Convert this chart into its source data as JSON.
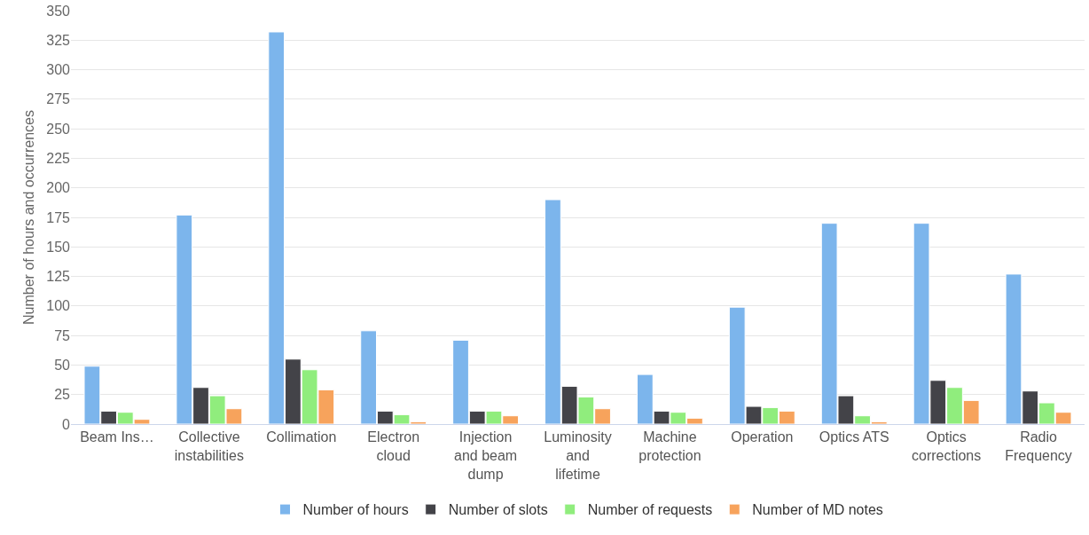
{
  "chart_data": {
    "type": "bar",
    "ylabel": "Number of hours and occurrences",
    "categories": [
      "Beam Ins…",
      "Collective instabilities",
      "Collimation",
      "Electron cloud",
      "Injection and beam dump",
      "Luminosity and lifetime",
      "Machine protection",
      "Operation",
      "Optics ATS",
      "Optics corrections",
      "Radio Frequency"
    ],
    "series": [
      {
        "name": "Number of hours",
        "color": "#7cb5ec",
        "values": [
          49,
          177,
          332,
          79,
          71,
          190,
          42,
          99,
          170,
          170,
          127
        ]
      },
      {
        "name": "Number of slots",
        "color": "#434348",
        "values": [
          11,
          31,
          55,
          11,
          11,
          32,
          11,
          15,
          24,
          37,
          28
        ]
      },
      {
        "name": "Number of requests",
        "color": "#90ed7d",
        "values": [
          10,
          24,
          46,
          8,
          11,
          23,
          10,
          14,
          7,
          31,
          18
        ]
      },
      {
        "name": "Number of MD notes",
        "color": "#f7a35c",
        "values": [
          4,
          13,
          29,
          2,
          7,
          13,
          5,
          11,
          2,
          20,
          10
        ]
      }
    ],
    "ylim": [
      0,
      350
    ],
    "yticks": [
      0,
      25,
      50,
      75,
      100,
      125,
      150,
      175,
      200,
      225,
      250,
      275,
      300,
      325,
      350
    ],
    "grid": "y",
    "legend": "bottom"
  }
}
